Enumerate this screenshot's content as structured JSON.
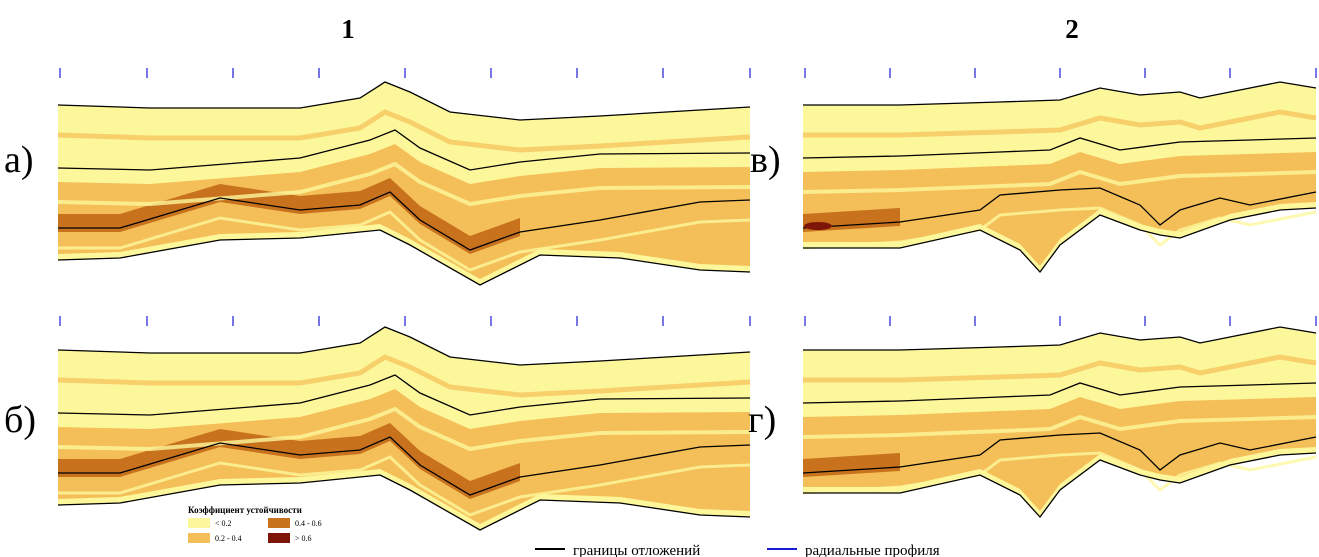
{
  "columns": [
    "1",
    "2"
  ],
  "panels": [
    {
      "label": "а)"
    },
    {
      "label": "б)"
    },
    {
      "label": "в)"
    },
    {
      "label": "г)"
    }
  ],
  "legend": {
    "title": "Коэффициент устойчивости",
    "items": [
      {
        "label": "< 0.2",
        "color": "#fdf79c"
      },
      {
        "label": "0.2 - 0.4",
        "color": "#f4bf58"
      },
      {
        "label": "0.4 - 0.6",
        "color": "#c8721e"
      },
      {
        "label": "> 0.6",
        "color": "#7d1608"
      }
    ]
  },
  "line_legend": [
    {
      "label": "границы отложений",
      "color": "#000000"
    },
    {
      "label": "радиальные профиля",
      "color": "#1c1cd4"
    }
  ]
}
